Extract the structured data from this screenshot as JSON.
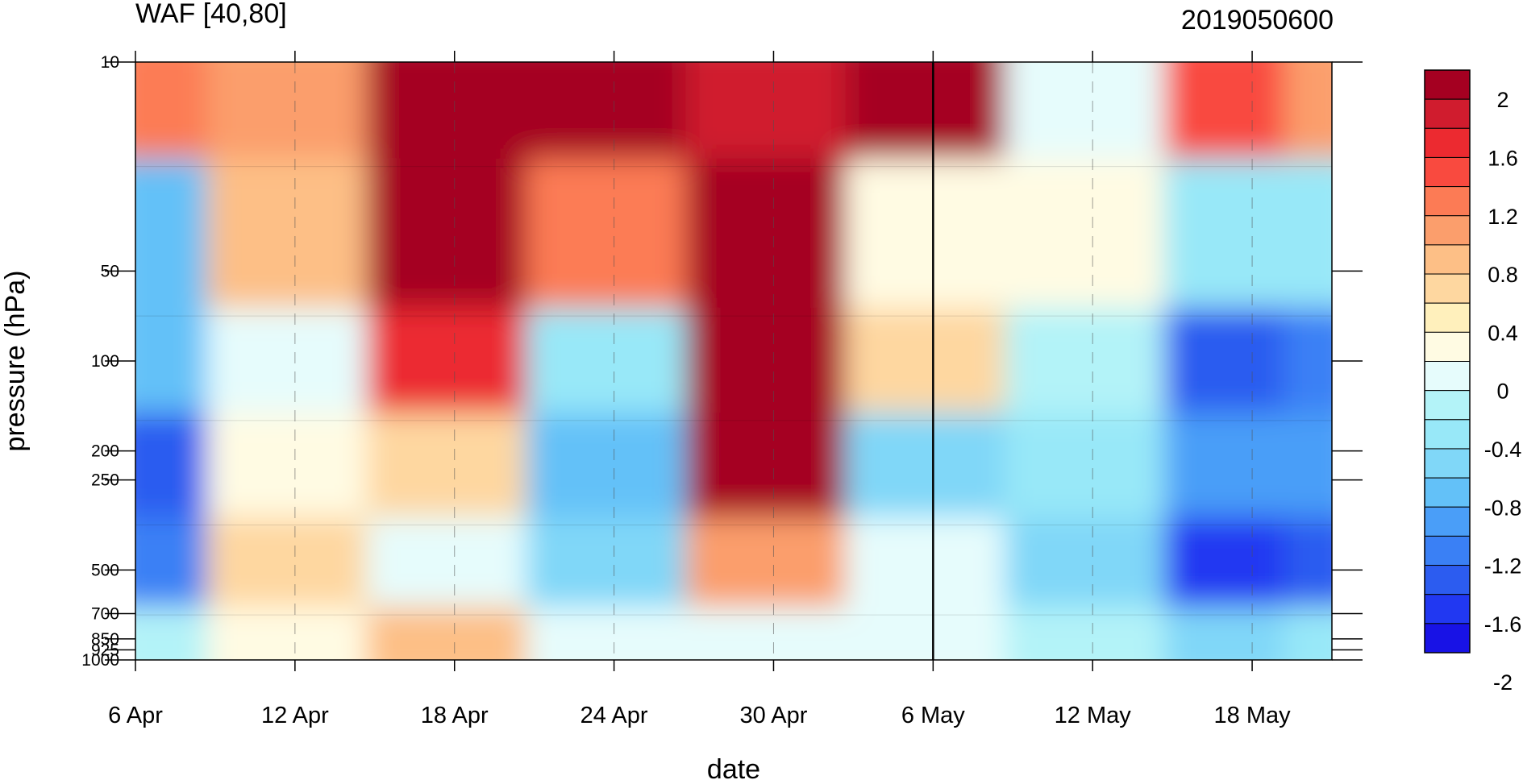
{
  "chart_data": {
    "type": "heatmap",
    "title": "WAF [40,80]",
    "run_label": "2019050600",
    "xlabel": "date",
    "ylabel": "pressure (hPa)",
    "x_ticks": [
      "6 Apr",
      "12 Apr",
      "18 Apr",
      "24 Apr",
      "30 Apr",
      "6 May",
      "12 May",
      "18 May"
    ],
    "x_range": [
      "2019-04-06",
      "2019-05-21"
    ],
    "y_ticks": [
      10,
      50,
      100,
      200,
      250,
      500,
      700,
      850,
      925,
      1000
    ],
    "y_tick_labels": [
      "10",
      "50",
      "100",
      "200",
      "250",
      "500",
      "700",
      "850",
      "925",
      "1000"
    ],
    "y_range": [
      1000,
      10
    ],
    "y_scale": "log",
    "vertical_marker": "6 May",
    "grid": "dashed vertical lines at date ticks",
    "colorbar": {
      "labels": [
        "2",
        "1.6",
        "1.2",
        "0.8",
        "0.4",
        "0",
        "-0.4",
        "-0.8",
        "-1.2",
        "-1.6",
        "-2"
      ],
      "levels": [
        2.2,
        2.0,
        1.8,
        1.6,
        1.4,
        1.2,
        1.0,
        0.8,
        0.6,
        0.4,
        0.2,
        0.0,
        -0.2,
        -0.4,
        -0.6,
        -0.8,
        -1.0,
        -1.2,
        -1.4,
        -1.6,
        -1.8,
        -2.0,
        -2.2
      ],
      "colors": [
        "#a50021",
        "#d01c2e",
        "#ec2a30",
        "#f94a3f",
        "#fc7b55",
        "#fb9e6c",
        "#fdbf86",
        "#fed7a0",
        "#fff0bc",
        "#fffbe3",
        "#e6fcfc",
        "#b3f3f8",
        "#98e8f8",
        "#80d7f8",
        "#63c1f8",
        "#4a9ef8",
        "#3a80f5",
        "#2c5cf0",
        "#2138f2",
        "#1812e6"
      ]
    },
    "sample_values": {
      "dates": [
        "2019-04-06",
        "2019-04-12",
        "2019-04-18",
        "2019-04-24",
        "2019-04-30",
        "2019-05-06",
        "2019-05-12",
        "2019-05-18",
        "2019-05-21"
      ],
      "pressure_levels": [
        10,
        50,
        100,
        250,
        500,
        1000
      ],
      "values_by_level": [
        [
          1.2,
          1.0,
          2.4,
          2.4,
          1.8,
          2.2,
          0.1,
          1.4,
          1.0
        ],
        [
          -0.7,
          0.9,
          2.2,
          1.2,
          2.2,
          0.3,
          0.2,
          -0.4,
          -0.3
        ],
        [
          -0.8,
          0.1,
          1.6,
          -0.3,
          2.0,
          0.6,
          -0.2,
          -1.3,
          -1.1
        ],
        [
          -1.3,
          0.3,
          0.6,
          -0.8,
          2.3,
          -0.5,
          -0.4,
          -1.0,
          -0.9
        ],
        [
          -1.1,
          0.6,
          0.1,
          -0.5,
          1.0,
          0.1,
          -0.6,
          -1.5,
          -1.3
        ],
        [
          -0.2,
          0.2,
          0.9,
          0.1,
          0.1,
          0.0,
          -0.1,
          -0.6,
          -0.4
        ]
      ]
    }
  }
}
